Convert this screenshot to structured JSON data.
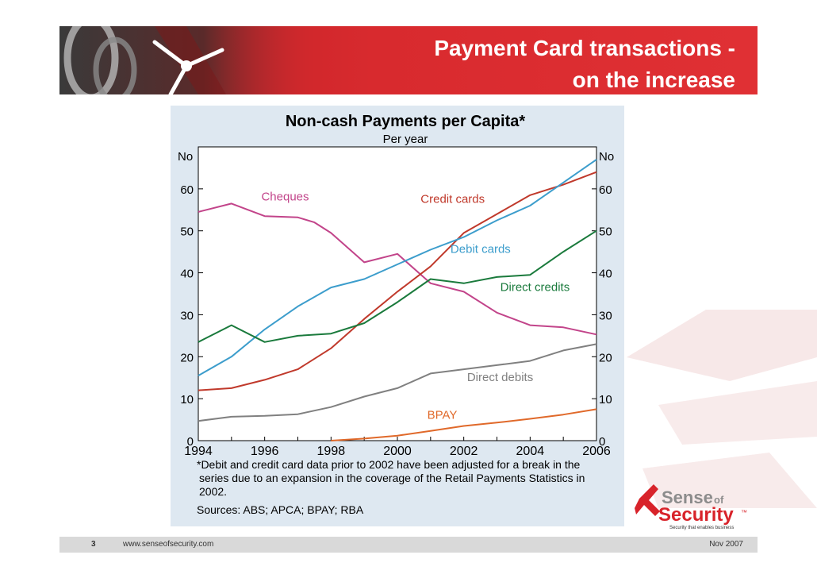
{
  "slide": {
    "title_line1": "Payment Card transactions -",
    "title_line2": "on the increase",
    "page_number": "3",
    "url": "www.senseofsecurity.com",
    "date": "Nov 2007"
  },
  "logo": {
    "word1": "Sense",
    "word2": "of",
    "word3": "Security",
    "tm": "™",
    "tagline": "Security that enables business"
  },
  "chart_data": {
    "type": "line",
    "title": "Non-cash Payments per Capita*",
    "subtitle": "Per year",
    "ylabel_left": "No",
    "ylabel_right": "No",
    "xlim": [
      1994,
      2006
    ],
    "ylim": [
      0,
      70
    ],
    "x_ticks": [
      1994,
      1996,
      1998,
      2000,
      2002,
      2004,
      2006
    ],
    "y_ticks": [
      0,
      10,
      20,
      30,
      40,
      50,
      60
    ],
    "grid": false,
    "series": [
      {
        "name": "Cheques",
        "color": "#c2448a",
        "label_x": 1995.9,
        "label_y": 57.2,
        "x": [
          1994,
          1995,
          1996,
          1997,
          1997.5,
          1998,
          1999,
          2000,
          2001,
          2002,
          2003,
          2004,
          2005,
          2006
        ],
        "y": [
          54.5,
          56.5,
          53.5,
          53.2,
          52,
          49.5,
          42.5,
          44.5,
          37.5,
          35.5,
          30.5,
          27.5,
          27,
          25.3
        ]
      },
      {
        "name": "Credit cards",
        "color": "#c0392b",
        "label_x": 2000.7,
        "label_y": 56.7,
        "x": [
          1994,
          1995,
          1996,
          1997,
          1998,
          1999,
          2000,
          2001,
          2002,
          2003,
          2004,
          2005,
          2006
        ],
        "y": [
          12,
          12.5,
          14.5,
          17,
          22,
          29,
          35.5,
          41.5,
          49.5,
          54,
          58.5,
          61,
          64
        ]
      },
      {
        "name": "Debit cards",
        "color": "#3c9dcc",
        "label_x": 2001.6,
        "label_y": 44.7,
        "x": [
          1994,
          1995,
          1996,
          1997,
          1998,
          1999,
          2000,
          2001,
          2002,
          2003,
          2004,
          2005,
          2006
        ],
        "y": [
          15.5,
          20,
          26.5,
          32,
          36.5,
          38.5,
          42,
          45.5,
          48.5,
          52.5,
          56,
          61.5,
          67
        ]
      },
      {
        "name": "Direct credits",
        "color": "#1a7a3c",
        "label_x": 2003.1,
        "label_y": 35.7,
        "x": [
          1994,
          1995,
          1996,
          1997,
          1998,
          1999,
          2000,
          2001,
          2002,
          2003,
          2004,
          2005,
          2006
        ],
        "y": [
          23.5,
          27.5,
          23.5,
          25,
          25.5,
          28,
          33,
          38.5,
          37.5,
          39,
          39.5,
          45,
          50
        ]
      },
      {
        "name": "Direct debits",
        "color": "#808080",
        "label_x": 2002.1,
        "label_y": 14.2,
        "x": [
          1994,
          1995,
          1996,
          1997,
          1998,
          1999,
          2000,
          2001,
          2002,
          2003,
          2004,
          2005,
          2006
        ],
        "y": [
          4.7,
          5.7,
          5.9,
          6.3,
          8,
          10.5,
          12.5,
          16,
          17,
          18,
          19,
          21.5,
          23
        ]
      },
      {
        "name": "BPAY",
        "color": "#e0692a",
        "label_x": 2000.9,
        "label_y": 5.2,
        "x": [
          1998,
          1999,
          2000,
          2001,
          2002,
          2003,
          2004,
          2005,
          2006
        ],
        "y": [
          0,
          0.5,
          1.2,
          2.3,
          3.5,
          4.3,
          5.2,
          6.2,
          7.5
        ]
      }
    ],
    "footnote": [
      "*Debit and credit card data prior to 2002 have been adjusted for a break in the",
      "series due to an expansion in the coverage of the Retail Payments Statistics in",
      "2002."
    ],
    "sources": "Sources: ABS; APCA; BPAY; RBA"
  }
}
